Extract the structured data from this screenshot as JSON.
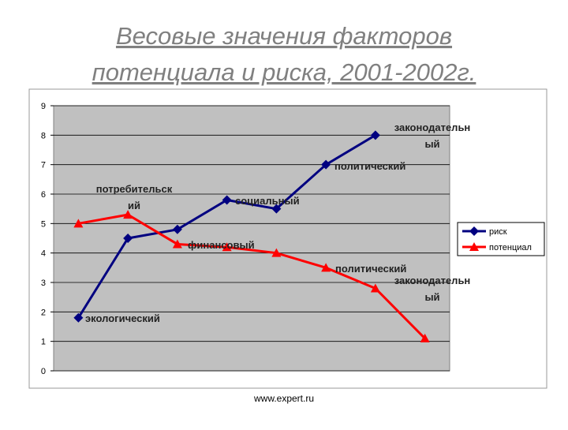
{
  "title": [
    "Весовые значения факторов",
    "потенциала и риска, 2001-2002г."
  ],
  "footer": "www.expert.ru",
  "chart_data": {
    "type": "line",
    "categories": [
      null,
      null,
      null,
      null,
      null,
      null,
      null,
      null
    ],
    "series": [
      {
        "name": "риск",
        "color": "#000080",
        "marker": "diamond",
        "values": [
          1.8,
          4.5,
          4.8,
          5.8,
          5.5,
          7,
          8,
          null
        ]
      },
      {
        "name": "потенциал",
        "color": "#ff0000",
        "marker": "triangle",
        "values": [
          5,
          5.3,
          4.3,
          4.2,
          4,
          3.5,
          2.8,
          1.1
        ]
      }
    ],
    "ylim": [
      0,
      9
    ],
    "yticks": [
      0,
      1,
      2,
      3,
      4,
      5,
      6,
      7,
      8,
      9
    ],
    "grid": true,
    "legend": "right",
    "annotations": [
      [
        "экологический"
      ],
      [
        "потребительск",
        "ий"
      ],
      [
        "социальный"
      ],
      [
        "финансовый"
      ],
      [
        "политический"
      ],
      [
        "законодательн",
        "ый"
      ],
      [
        "политический"
      ],
      [
        "законодательн",
        "ый"
      ]
    ]
  }
}
